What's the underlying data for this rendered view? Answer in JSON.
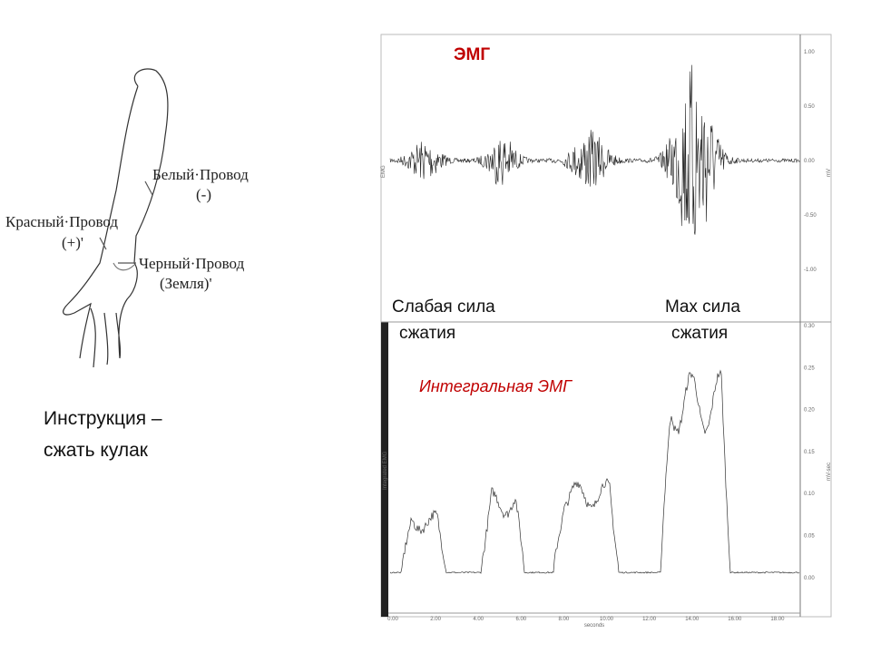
{
  "arm_labels": {
    "white_wire": "Белый·Провод",
    "white_sign": "(-)",
    "red_wire": "Красный·Провод",
    "red_sign": "(+)'",
    "black_wire": "Черный·Провод",
    "black_sign": "(Земля)'"
  },
  "instruction": [
    "Инструкция –",
    "сжать кулак"
  ],
  "emg": {
    "title": "ЭМГ",
    "channel": "EMG",
    "unit": "mV",
    "yticks": [
      "1.00",
      "0.50",
      "0.00",
      "-0.50",
      "-1.00"
    ]
  },
  "labels": {
    "weak": [
      "Слабая сила",
      "сжатия"
    ],
    "max": [
      "Max сила",
      "сжатия"
    ]
  },
  "integrated": {
    "title": "Интегральная ЭМГ",
    "channel": "Integrated EMG",
    "unit": "mV-sec",
    "yticks": [
      "0.30",
      "0.25",
      "0.20",
      "0.15",
      "0.10",
      "0.05",
      "0.00"
    ]
  },
  "x_axis": {
    "ticks": [
      "0.00",
      "2.00",
      "4.00",
      "6.00",
      "8.00",
      "10.00",
      "12.00",
      "14.00",
      "16.00",
      "18.00"
    ],
    "label": "seconds"
  }
}
